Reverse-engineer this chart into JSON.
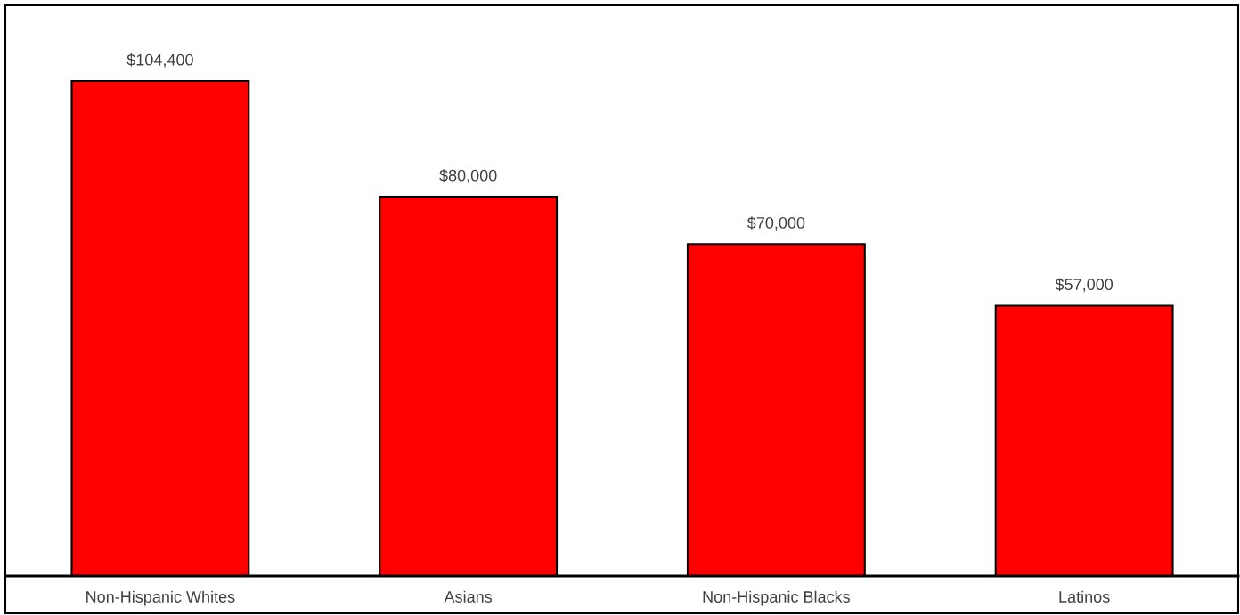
{
  "chart_data": {
    "type": "bar",
    "categories": [
      "Non-Hispanic Whites",
      "Asians",
      "Non-Hispanic Blacks",
      "Latinos"
    ],
    "values": [
      104400,
      80000,
      70000,
      57000
    ],
    "value_labels": [
      "$104,400",
      "$80,000",
      "$70,000",
      "$57,000"
    ],
    "color": "#ff0000",
    "ylim": [
      0,
      120000
    ],
    "tick_labels": "x",
    "grid": false,
    "legend": false
  }
}
